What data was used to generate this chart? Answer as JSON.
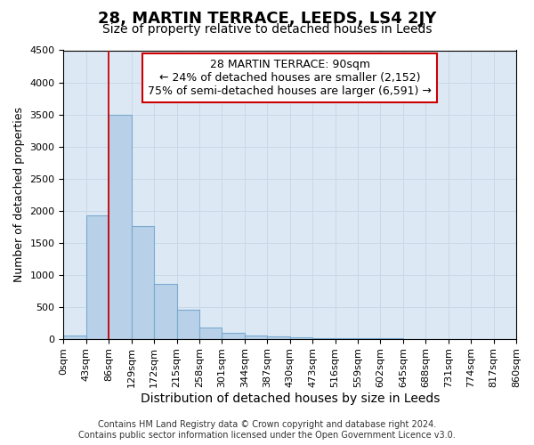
{
  "title": "28, MARTIN TERRACE, LEEDS, LS4 2JY",
  "subtitle": "Size of property relative to detached houses in Leeds",
  "xlabel": "Distribution of detached houses by size in Leeds",
  "ylabel": "Number of detached properties",
  "footer_line1": "Contains HM Land Registry data © Crown copyright and database right 2024.",
  "footer_line2": "Contains public sector information licensed under the Open Government Licence v3.0.",
  "bar_edges": [
    0,
    43,
    86,
    129,
    172,
    215,
    258,
    301,
    344,
    387,
    430,
    473,
    516,
    559,
    602,
    645,
    688,
    731,
    774,
    817,
    860
  ],
  "bar_heights": [
    50,
    1920,
    3500,
    1760,
    860,
    450,
    175,
    90,
    55,
    35,
    20,
    10,
    5,
    3,
    2,
    1,
    1,
    1,
    0,
    0
  ],
  "bar_color": "#b8d0e8",
  "bar_edge_color": "#7aaad0",
  "property_line_x": 86,
  "property_line_color": "#cc0000",
  "ylim": [
    0,
    4500
  ],
  "yticks": [
    0,
    500,
    1000,
    1500,
    2000,
    2500,
    3000,
    3500,
    4000,
    4500
  ],
  "annotation_title": "28 MARTIN TERRACE: 90sqm",
  "annotation_line2": "← 24% of detached houses are smaller (2,152)",
  "annotation_line3": "75% of semi-detached houses are larger (6,591) →",
  "annotation_box_color": "#cc0000",
  "grid_color": "#c8d8e8",
  "background_color": "#dce9f5",
  "title_fontsize": 13,
  "subtitle_fontsize": 10,
  "tick_label_fontsize": 8,
  "ylabel_fontsize": 9,
  "xlabel_fontsize": 10,
  "annotation_fontsize": 9,
  "footer_fontsize": 7
}
